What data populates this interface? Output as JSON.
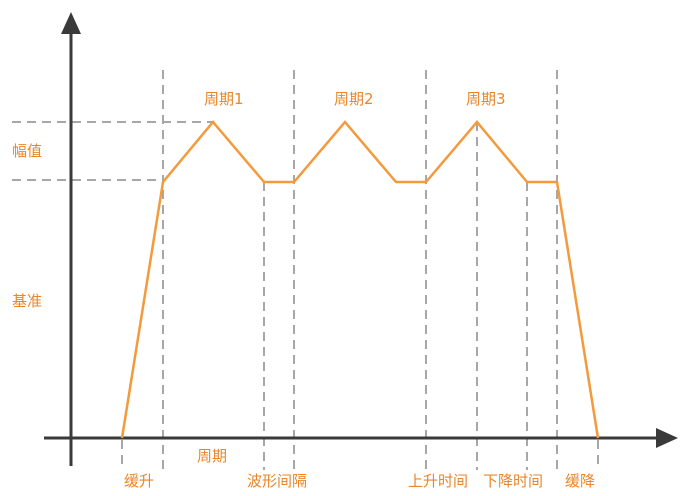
{
  "labels": {
    "amplitude": "幅值",
    "baseline": "基准",
    "period1": "周期1",
    "period2": "周期2",
    "period3": "周期3",
    "period": "周期",
    "ramp_up": "缓升",
    "wave_interval": "波形间隔",
    "rise_time": "上升时间",
    "fall_time": "下降时间",
    "ramp_down": "缓降"
  },
  "colors": {
    "waveform": "#f39a3c",
    "label_text": "#e8862a",
    "axis": "#3a3a3a",
    "guide_lines": "#a7a7a7"
  }
}
